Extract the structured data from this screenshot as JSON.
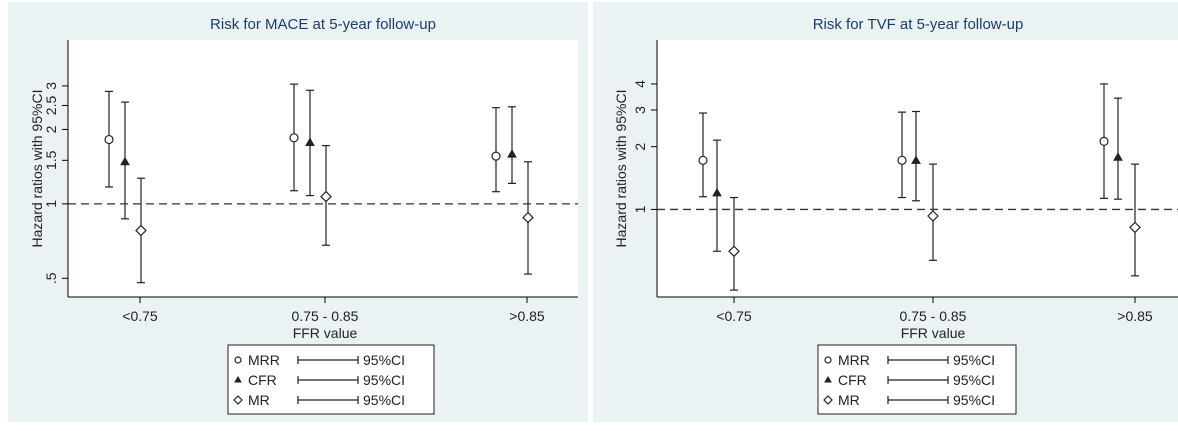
{
  "chart_data": [
    {
      "type": "forest",
      "title": "Risk for MACE at 5-year follow-up",
      "xlabel": "FFR value",
      "ylabel": "Hazard ratios with 95%CI",
      "y_scale": "log",
      "ylim": [
        0.42,
        4.6
      ],
      "y_ticks": [
        0.5,
        1,
        1.5,
        2,
        2.5,
        3
      ],
      "y_tick_labels": [
        ".5",
        "1",
        "1.5",
        "2",
        "2.5",
        "3"
      ],
      "reference_line": 1,
      "categories": [
        "<0.75",
        "0.75 - 0.85",
        ">0.85"
      ],
      "series": [
        {
          "name": "MRR",
          "marker": "circle",
          "values": [
            1.82,
            1.85,
            1.56
          ],
          "lower": [
            1.17,
            1.13,
            1.12
          ],
          "upper": [
            2.85,
            3.05,
            2.45
          ]
        },
        {
          "name": "CFR",
          "marker": "triangle",
          "values": [
            1.48,
            1.77,
            1.59
          ],
          "lower": [
            0.87,
            1.08,
            1.21
          ],
          "upper": [
            2.58,
            2.88,
            2.47
          ]
        },
        {
          "name": "MR",
          "marker": "diamond",
          "values": [
            0.78,
            1.07,
            0.88
          ],
          "lower": [
            0.48,
            0.68,
            0.52
          ],
          "upper": [
            1.27,
            1.72,
            1.48
          ]
        }
      ],
      "legend": {
        "position": "bottom",
        "ci_label": "95%CI"
      },
      "grid": false
    },
    {
      "type": "forest",
      "title": "Risk for TVF at 5-year follow-up",
      "xlabel": "FFR value",
      "ylabel": "Hazard ratios with 95%CI",
      "y_scale": "log",
      "ylim": [
        0.38,
        6.5
      ],
      "y_ticks": [
        1,
        2,
        3,
        4
      ],
      "y_tick_labels": [
        "1",
        "2",
        "3",
        "4"
      ],
      "reference_line": 1,
      "categories": [
        "<0.75",
        "0.75 - 0.85",
        ">0.85"
      ],
      "series": [
        {
          "name": "MRR",
          "marker": "circle",
          "values": [
            1.72,
            1.72,
            2.12
          ],
          "lower": [
            1.15,
            1.14,
            1.13
          ],
          "upper": [
            2.9,
            2.93,
            4.0
          ]
        },
        {
          "name": "CFR",
          "marker": "triangle",
          "values": [
            1.2,
            1.72,
            1.78
          ],
          "lower": [
            0.63,
            1.1,
            1.12
          ],
          "upper": [
            2.15,
            2.95,
            3.42
          ]
        },
        {
          "name": "MR",
          "marker": "diamond",
          "values": [
            0.63,
            0.93,
            0.82
          ],
          "lower": [
            0.41,
            0.57,
            0.48
          ],
          "upper": [
            1.14,
            1.65,
            1.65
          ]
        }
      ],
      "legend": {
        "position": "bottom",
        "ci_label": "95%CI"
      },
      "grid": false
    }
  ]
}
